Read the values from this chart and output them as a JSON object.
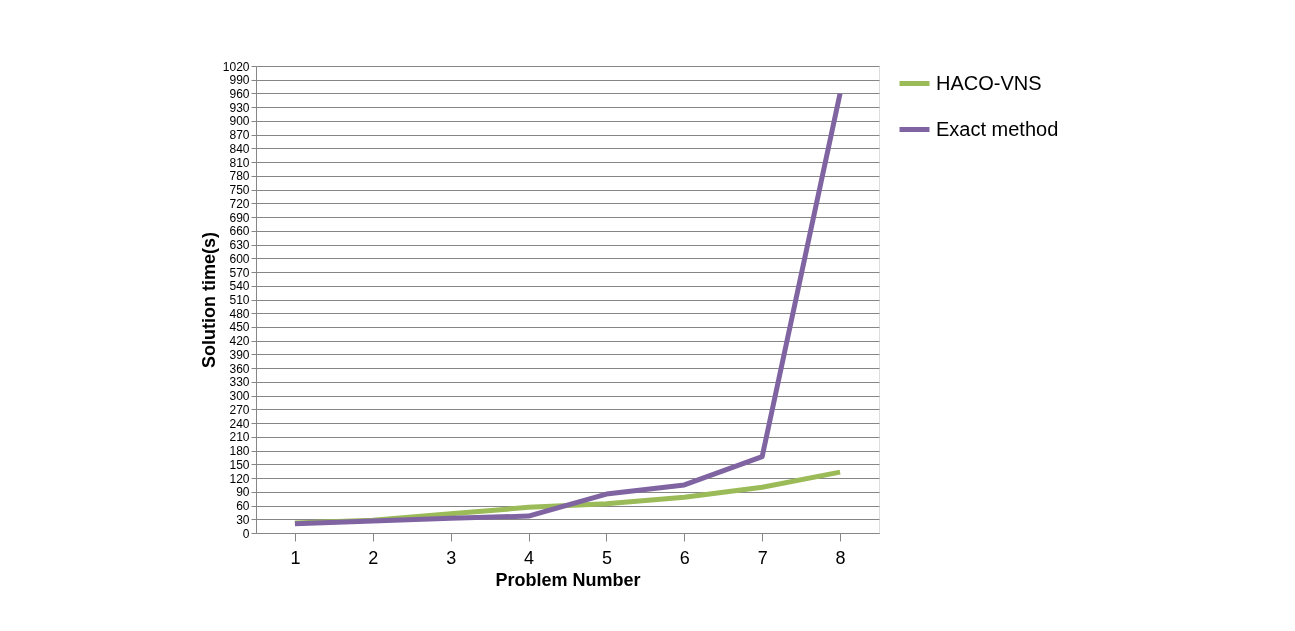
{
  "chart_data": {
    "type": "line",
    "xlabel": "Problem Number",
    "ylabel": "Solution time(s)",
    "categories": [
      "1",
      "2",
      "3",
      "4",
      "5",
      "6",
      "7",
      "8"
    ],
    "series": [
      {
        "name": "HACO-VNS",
        "color": "#9bbb59",
        "values": [
          22,
          28,
          42,
          56,
          64,
          78,
          100,
          133
        ]
      },
      {
        "name": "Exact method",
        "color": "#8064a2",
        "values": [
          20,
          26,
          32,
          37,
          85,
          105,
          167,
          960
        ]
      }
    ],
    "ylim": [
      0,
      1020
    ],
    "yticks": [
      0,
      30,
      60,
      90,
      120,
      150,
      180,
      210,
      240,
      270,
      300,
      330,
      360,
      390,
      420,
      450,
      480,
      510,
      540,
      570,
      600,
      630,
      660,
      690,
      720,
      750,
      780,
      810,
      840,
      870,
      900,
      930,
      960,
      990,
      1020
    ],
    "grid": "y",
    "legend": "right",
    "marker": "none",
    "line_style": "solid"
  }
}
